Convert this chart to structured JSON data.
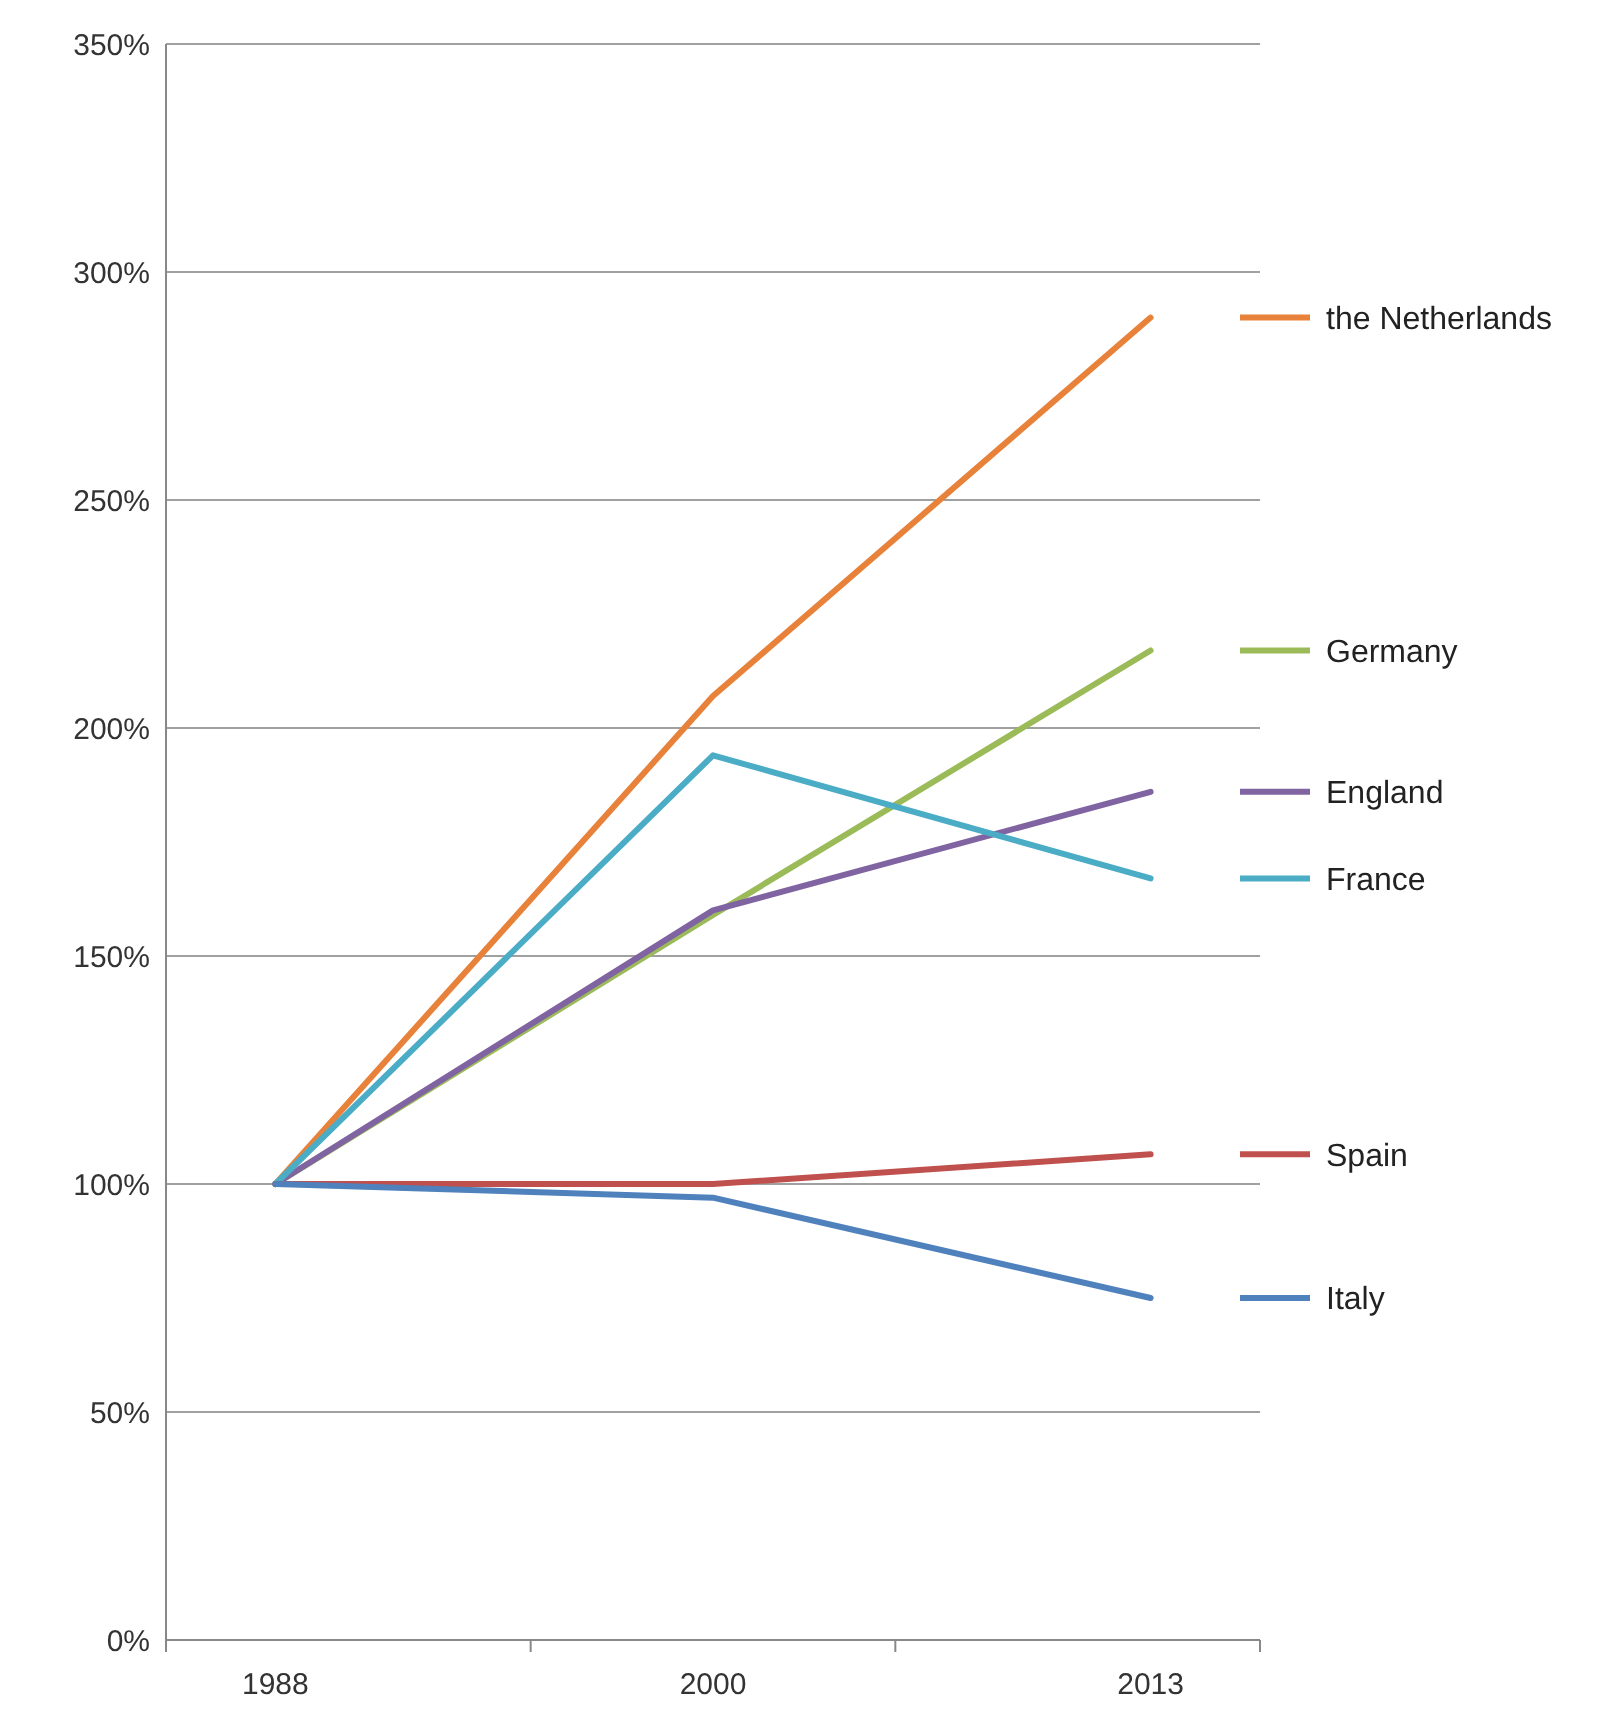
{
  "chart_data": {
    "type": "line",
    "categories": [
      "1988",
      "2000",
      "2013"
    ],
    "series": [
      {
        "name": "the Netherlands",
        "color": "#e8823a",
        "values": [
          100,
          207,
          290
        ]
      },
      {
        "name": "Germany",
        "color": "#9bbb59",
        "values": [
          100,
          159,
          217
        ]
      },
      {
        "name": "England",
        "color": "#8064a2",
        "values": [
          100,
          160,
          186
        ]
      },
      {
        "name": "France",
        "color": "#4bacc6",
        "values": [
          100,
          194,
          167
        ]
      },
      {
        "name": "Spain",
        "color": "#c0504d",
        "values": [
          100,
          100,
          106.5
        ]
      },
      {
        "name": "Italy",
        "color": "#4f81bd",
        "values": [
          100,
          97,
          75
        ]
      }
    ],
    "ylim": [
      0,
      350
    ],
    "yticks": [
      {
        "value": 0,
        "label": "0%"
      },
      {
        "value": 50,
        "label": "50%"
      },
      {
        "value": 100,
        "label": "100%"
      },
      {
        "value": 150,
        "label": "150%"
      },
      {
        "value": 200,
        "label": "200%"
      },
      {
        "value": 250,
        "label": "250%"
      },
      {
        "value": 300,
        "label": "300%"
      },
      {
        "value": 350,
        "label": "350%"
      }
    ],
    "grid": "y",
    "legend": "right",
    "marker": "none",
    "line_style": "solid"
  }
}
